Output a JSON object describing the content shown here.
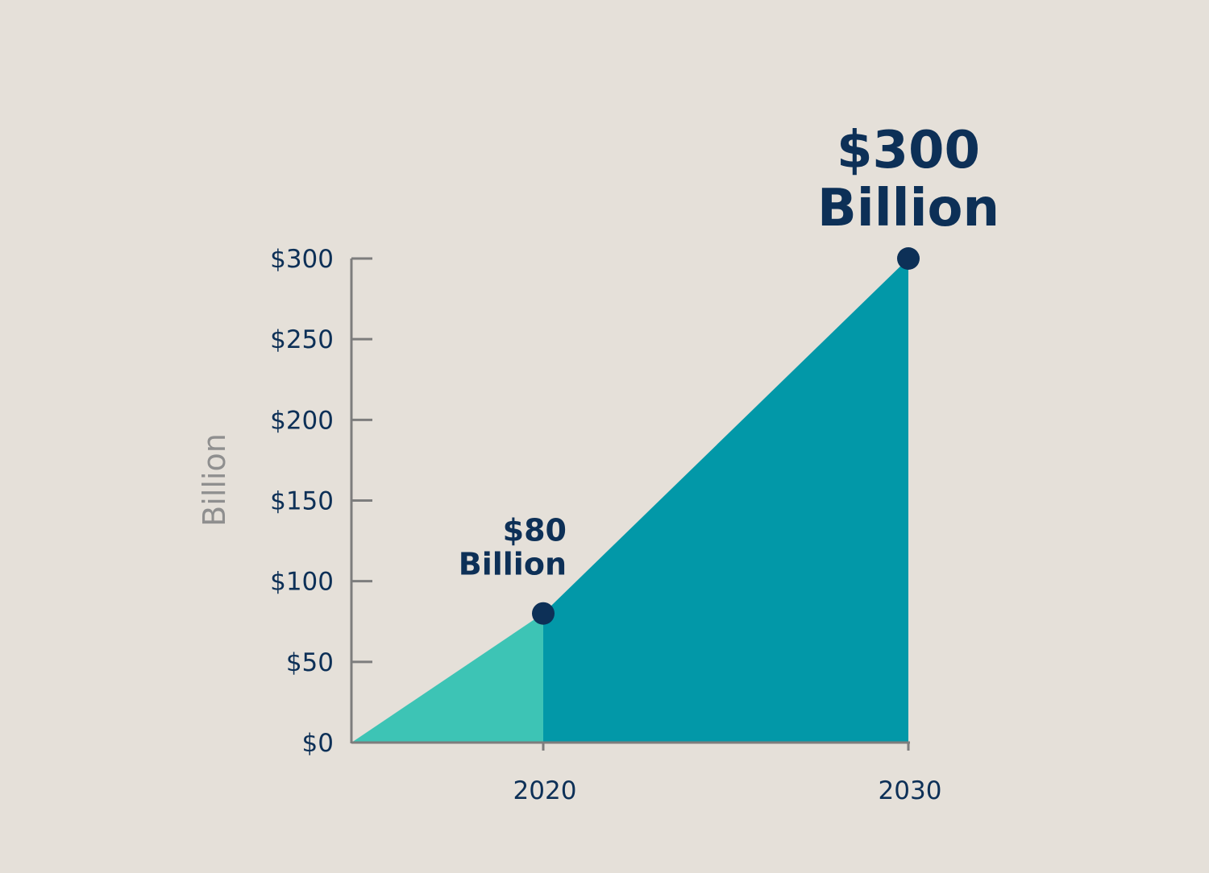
{
  "chart_data": {
    "type": "area",
    "ylabel": "Billion",
    "xlabel": "",
    "ylim": [
      0,
      300
    ],
    "yticks": [
      0,
      50,
      100,
      150,
      200,
      250,
      300
    ],
    "ytick_labels": [
      "$0",
      "$50",
      "$100",
      "$150",
      "$200",
      "$250",
      "$300"
    ],
    "xticks": [
      2020,
      2030
    ],
    "xtick_labels": [
      "2020",
      "2030"
    ],
    "series": [
      {
        "x": [
          2014.75,
          2020,
          2030
        ],
        "y": [
          0,
          80,
          300
        ]
      }
    ],
    "annotations": [
      {
        "x": 2020,
        "y": 80,
        "lines": [
          "$80",
          "Billion"
        ]
      },
      {
        "x": 2030,
        "y": 300,
        "lines": [
          "$300",
          "Billion"
        ]
      }
    ],
    "colors": {
      "background": "#e5e0d9",
      "area_before_2020": "#3dc4b5",
      "area_after_2020": "#0298a8",
      "marker": "#0d3057",
      "axis": "#7d7d7d",
      "text": "#0d3057",
      "ylabel": "#8f8f8f"
    }
  }
}
